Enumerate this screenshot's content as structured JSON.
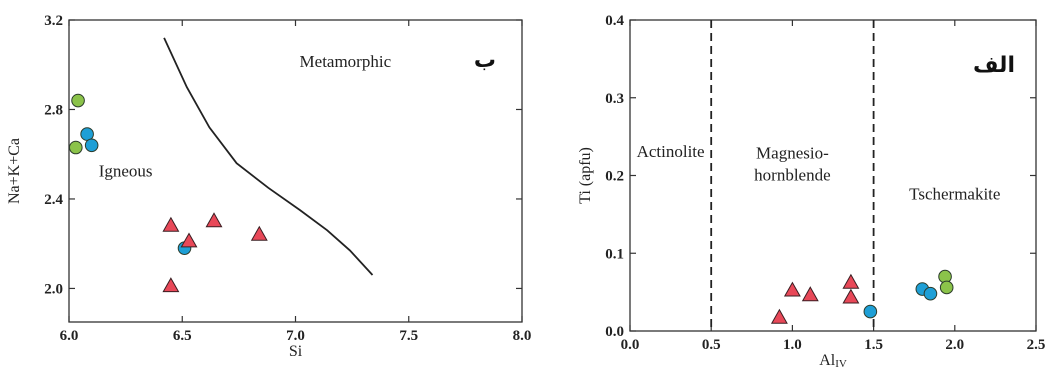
{
  "chart_data": [
    {
      "type": "scatter",
      "panel_label": "ب",
      "xlabel": "Si",
      "ylabel": "Na+K+Ca",
      "xlim": [
        6.0,
        8.0
      ],
      "ylim": [
        1.85,
        3.2
      ],
      "x_ticks": [
        6.0,
        6.5,
        7.0,
        7.5,
        8.0
      ],
      "x_tick_labels": [
        "6.0",
        "6.5",
        "7.0",
        "7.5",
        "8.0"
      ],
      "y_ticks": [
        2.0,
        2.4,
        2.8,
        3.2
      ],
      "y_tick_labels": [
        "2.0",
        "2.4",
        "2.8",
        "3.2"
      ],
      "regions": [
        {
          "text": "Igneous",
          "x": 6.25,
          "y": 2.5
        },
        {
          "text": "Metamorphic",
          "x": 7.22,
          "y": 2.99
        }
      ],
      "boundary_curve": [
        [
          6.42,
          3.12
        ],
        [
          6.52,
          2.9
        ],
        [
          6.62,
          2.72
        ],
        [
          6.74,
          2.56
        ],
        [
          6.88,
          2.45
        ],
        [
          7.02,
          2.35
        ],
        [
          7.14,
          2.26
        ],
        [
          7.24,
          2.17
        ],
        [
          7.34,
          2.06
        ]
      ],
      "series": [
        {
          "marker": "circle",
          "color": "#8bc34a",
          "points": [
            [
              6.04,
              2.84
            ],
            [
              6.03,
              2.63
            ]
          ]
        },
        {
          "marker": "circle",
          "color": "#1e9fd6",
          "points": [
            [
              6.08,
              2.69
            ],
            [
              6.1,
              2.64
            ],
            [
              6.51,
              2.18
            ]
          ]
        },
        {
          "marker": "triangle",
          "color": "#e84858",
          "points": [
            [
              6.45,
              2.28
            ],
            [
              6.53,
              2.21
            ],
            [
              6.64,
              2.3
            ],
            [
              6.84,
              2.24
            ],
            [
              6.45,
              2.01
            ]
          ]
        }
      ]
    },
    {
      "type": "scatter",
      "panel_label": "الف",
      "xlabel": "Al",
      "xlabel_sub": "IV",
      "ylabel": "Ti (apfu)",
      "xlim": [
        0.0,
        2.5
      ],
      "ylim": [
        0.0,
        0.4
      ],
      "x_ticks": [
        0.0,
        0.5,
        1.0,
        1.5,
        2.0,
        2.5
      ],
      "x_tick_labels": [
        "0.0",
        "0.5",
        "1.0",
        "1.5",
        "2.0",
        "2.5"
      ],
      "y_ticks": [
        0.0,
        0.1,
        0.2,
        0.3,
        0.4
      ],
      "y_tick_labels": [
        "0.0",
        "0.1",
        "0.2",
        "0.3",
        "0.4"
      ],
      "divider_lines_x": [
        0.5,
        1.5
      ],
      "regions": [
        {
          "lines": [
            "Actinolite"
          ],
          "x": 0.25,
          "y": 0.224
        },
        {
          "lines": [
            "Magnesio-",
            "hornblende"
          ],
          "x": 1.0,
          "y": 0.222
        },
        {
          "lines": [
            "Tschermakite"
          ],
          "x": 2.0,
          "y": 0.169
        }
      ],
      "series": [
        {
          "marker": "circle",
          "color": "#8bc34a",
          "points": [
            [
              1.94,
              0.07
            ],
            [
              1.95,
              0.056
            ]
          ]
        },
        {
          "marker": "circle",
          "color": "#1e9fd6",
          "points": [
            [
              1.8,
              0.054
            ],
            [
              1.85,
              0.048
            ],
            [
              1.48,
              0.025
            ]
          ]
        },
        {
          "marker": "triangle",
          "color": "#e84858",
          "points": [
            [
              0.92,
              0.017
            ],
            [
              1.0,
              0.052
            ],
            [
              1.11,
              0.046
            ],
            [
              1.36,
              0.062
            ],
            [
              1.36,
              0.043
            ]
          ]
        }
      ]
    }
  ]
}
